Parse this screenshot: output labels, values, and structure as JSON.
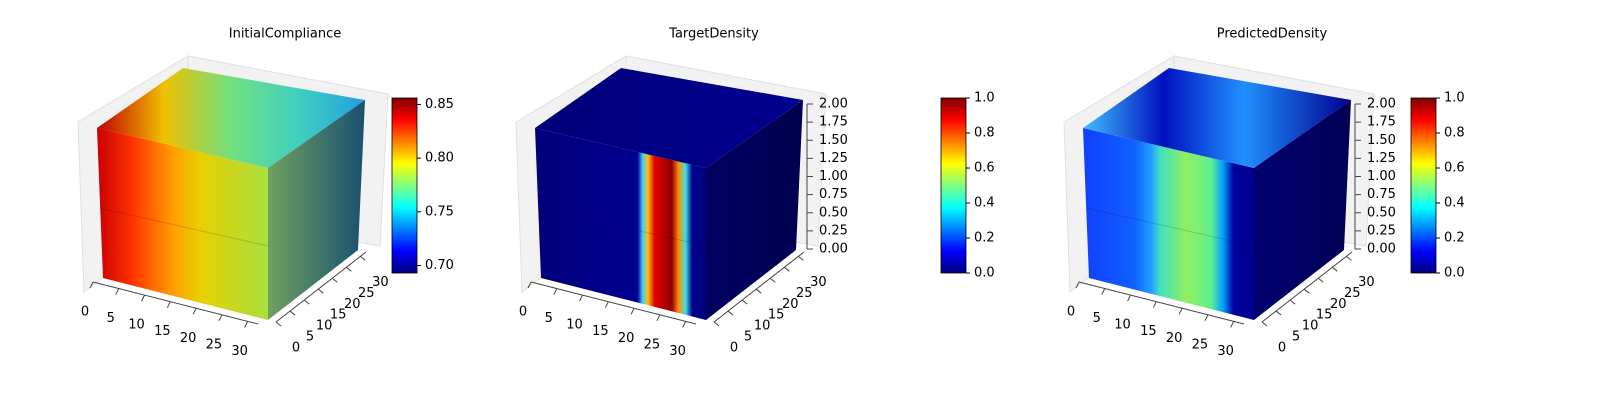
{
  "chart_data": [
    {
      "type": "voxel3d",
      "title": "InitialCompliance",
      "xlim": [
        0,
        32
      ],
      "xticks": [
        0,
        5,
        10,
        15,
        20,
        25,
        30
      ],
      "ylim": [
        0,
        32
      ],
      "yticks": [
        0,
        5,
        10,
        15,
        20,
        25,
        30
      ],
      "colormap": "jet",
      "clim": [
        0.693,
        0.856
      ],
      "cticks": [
        {
          "value": 0.7,
          "label": "0.70"
        },
        {
          "value": 0.75,
          "label": "0.75"
        },
        {
          "value": 0.8,
          "label": "0.80"
        },
        {
          "value": 0.85,
          "label": "0.85"
        }
      ]
    },
    {
      "type": "voxel3d",
      "title": "TargetDensity",
      "xlim": [
        0,
        32
      ],
      "xticks": [
        0,
        5,
        10,
        15,
        20,
        25,
        30
      ],
      "ylim": [
        0,
        32
      ],
      "yticks": [
        0,
        5,
        10,
        15,
        20,
        25,
        30
      ],
      "zlim": [
        0,
        2
      ],
      "zticks": [
        {
          "value": 0,
          "label": "0.00"
        },
        {
          "value": 0.25,
          "label": "0.25"
        },
        {
          "value": 0.5,
          "label": "0.50"
        },
        {
          "value": 0.75,
          "label": "0.75"
        },
        {
          "value": 1,
          "label": "1.00"
        },
        {
          "value": 1.25,
          "label": "1.25"
        },
        {
          "value": 1.5,
          "label": "1.50"
        },
        {
          "value": 1.75,
          "label": "1.75"
        },
        {
          "value": 2,
          "label": "2.00"
        }
      ],
      "colormap": "jet",
      "clim": [
        0,
        1
      ],
      "cticks": [
        {
          "value": 0,
          "label": "0.0"
        },
        {
          "value": 0.2,
          "label": "0.2"
        },
        {
          "value": 0.4,
          "label": "0.4"
        },
        {
          "value": 0.6,
          "label": "0.6"
        },
        {
          "value": 0.8,
          "label": "0.8"
        },
        {
          "value": 1,
          "label": "1.0"
        }
      ]
    },
    {
      "type": "voxel3d",
      "title": "PredictedDensity",
      "xlim": [
        0,
        32
      ],
      "xticks": [
        0,
        5,
        10,
        15,
        20,
        25,
        30
      ],
      "ylim": [
        0,
        32
      ],
      "yticks": [
        0,
        5,
        10,
        15,
        20,
        25,
        30
      ],
      "zlim": [
        0,
        2
      ],
      "zticks": [
        {
          "value": 0,
          "label": "0.00"
        },
        {
          "value": 0.25,
          "label": "0.25"
        },
        {
          "value": 0.5,
          "label": "0.50"
        },
        {
          "value": 0.75,
          "label": "0.75"
        },
        {
          "value": 1,
          "label": "1.00"
        },
        {
          "value": 1.25,
          "label": "1.25"
        },
        {
          "value": 1.5,
          "label": "1.50"
        },
        {
          "value": 1.75,
          "label": "1.75"
        },
        {
          "value": 2,
          "label": "2.00"
        }
      ],
      "colormap": "jet",
      "clim": [
        0,
        1
      ],
      "cticks": [
        {
          "value": 0,
          "label": "0.0"
        },
        {
          "value": 0.2,
          "label": "0.2"
        },
        {
          "value": 0.4,
          "label": "0.4"
        },
        {
          "value": 0.6,
          "label": "0.6"
        },
        {
          "value": 0.8,
          "label": "0.8"
        },
        {
          "value": 1,
          "label": "1.0"
        }
      ]
    }
  ]
}
